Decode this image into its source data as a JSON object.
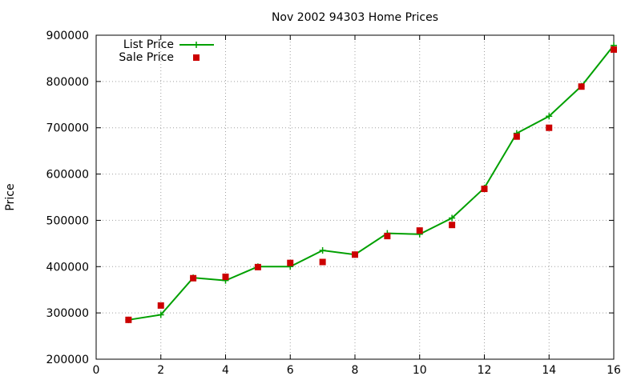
{
  "chart_data": {
    "type": "line",
    "title": "Nov 2002 94303 Home Prices",
    "xlabel": "",
    "ylabel": "Price",
    "xlim": [
      0,
      16
    ],
    "ylim": [
      200000,
      900000
    ],
    "xticks": [
      "0",
      "2",
      "4",
      "6",
      "8",
      "10",
      "12",
      "14",
      "16"
    ],
    "yticks": [
      "200000",
      "300000",
      "400000",
      "500000",
      "600000",
      "700000",
      "800000",
      "900000"
    ],
    "grid": true,
    "legend_position": "top-left",
    "series": [
      {
        "name": "List Price",
        "style": "line-with-plus-markers",
        "color": "#00a000",
        "x": [
          1,
          2,
          3,
          4,
          5,
          6,
          7,
          8,
          9,
          10,
          11,
          12,
          13,
          14,
          15,
          16
        ],
        "y": [
          285000,
          296000,
          376000,
          370000,
          400000,
          400000,
          435000,
          426000,
          472000,
          470000,
          505000,
          570000,
          688000,
          725000,
          790000,
          878000
        ]
      },
      {
        "name": "Sale Price",
        "style": "square-points",
        "color": "#cc0000",
        "x": [
          1,
          2,
          3,
          4,
          5,
          6,
          7,
          8,
          9,
          10,
          11,
          12,
          13,
          14,
          15,
          16
        ],
        "y": [
          285000,
          316000,
          375000,
          378000,
          399000,
          408000,
          410000,
          426000,
          466000,
          478000,
          490000,
          568000,
          681000,
          700000,
          789000,
          869000
        ]
      }
    ]
  }
}
